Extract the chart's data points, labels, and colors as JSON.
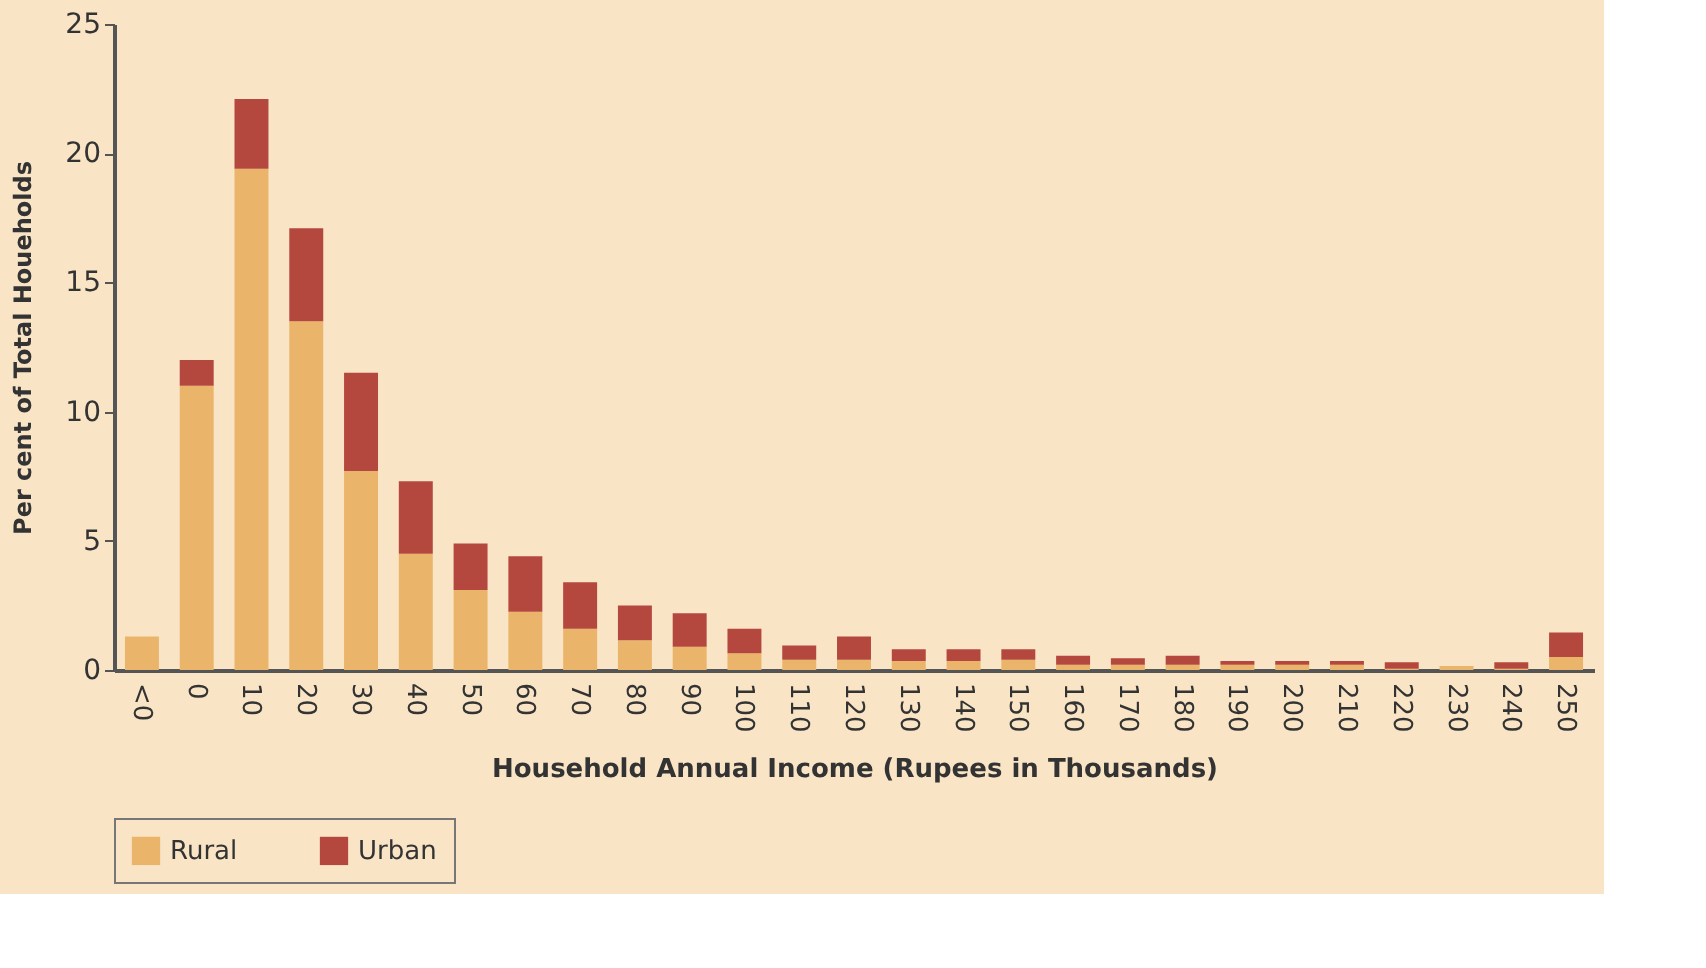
{
  "chart_data": {
    "type": "bar",
    "stacked": true,
    "xlabel": "Household Annual Income  (Rupees in Thousands)",
    "ylabel": "Per cent of Total Houeholds",
    "categories": [
      "<0",
      "0",
      "10",
      "20",
      "30",
      "40",
      "50",
      "60",
      "70",
      "80",
      "90",
      "100",
      "110",
      "120",
      "130",
      "140",
      "150",
      "160",
      "170",
      "180",
      "190",
      "200",
      "210",
      "220",
      "230",
      "240",
      "250"
    ],
    "series": [
      {
        "name": "Rural",
        "color": "#eab56a",
        "values": [
          1.3,
          11.0,
          19.4,
          13.5,
          7.7,
          4.5,
          3.1,
          2.25,
          1.6,
          1.15,
          0.9,
          0.65,
          0.4,
          0.4,
          0.35,
          0.35,
          0.4,
          0.2,
          0.2,
          0.2,
          0.2,
          0.2,
          0.2,
          0.05,
          0.15,
          0.05,
          0.5
        ]
      },
      {
        "name": "Urban",
        "color": "#b5483e",
        "values": [
          0,
          1.0,
          2.7,
          3.6,
          3.8,
          2.8,
          1.8,
          2.15,
          1.8,
          1.35,
          1.3,
          0.95,
          0.55,
          0.9,
          0.45,
          0.45,
          0.4,
          0.35,
          0.25,
          0.35,
          0.15,
          0.15,
          0.15,
          0.25,
          0,
          0.25,
          0.95
        ]
      }
    ],
    "ylim": [
      0,
      25
    ],
    "yticks": [
      0,
      5,
      10,
      15,
      20,
      25
    ],
    "grid": false,
    "legend": "bottom"
  }
}
